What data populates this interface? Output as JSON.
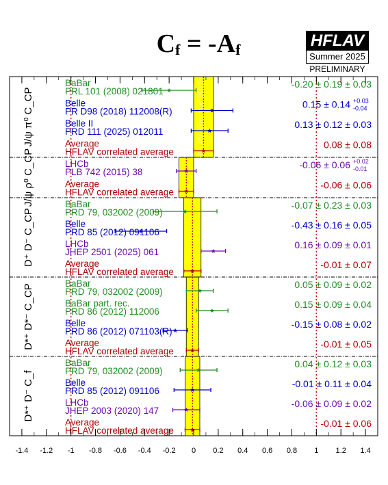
{
  "header": {
    "title_main": "C",
    "title_sub": "f",
    "title_mid": " = -A",
    "title_sub2": "f",
    "logo_name": "HFLAV",
    "logo_season": "Summer 2025",
    "logo_status": "PRELIMINARY"
  },
  "chart_data": {
    "type": "forest",
    "xlim": [
      -1.5,
      1.5
    ],
    "x_ticks": [
      -1.4,
      -1.2,
      -1,
      -0.8,
      -0.6,
      -0.4,
      -0.2,
      0,
      0.2,
      0.4,
      0.6,
      0.8,
      1,
      1.2,
      1.4
    ],
    "x_tick_labels": [
      "-1.4",
      "-1.2",
      "-1",
      "-0.8",
      "-0.6",
      "-0.4",
      "-0.2",
      "0",
      "0.2",
      "0.4",
      "0.6",
      "0.8",
      "1",
      "1.2",
      "1.4"
    ],
    "reference_lines": [
      -1,
      1
    ],
    "watermark": "HFLAV Summer 2025",
    "colors": {
      "babar": "#228b22",
      "belle": "#0000cd",
      "lhcb": "#6a0dad",
      "average": "#b00000",
      "band": "#ffff00"
    },
    "groups": [
      {
        "label": "J/ψ π⁰ C_CP",
        "average": {
          "value": 0.08,
          "error": 0.08
        },
        "entries": [
          {
            "experiment": "BaBar",
            "reference": "PRL 101 (2008) 021801",
            "color_key": "babar",
            "value": -0.2,
            "stat": 0.19,
            "syst": 0.03,
            "value_text": "-0.20 ± 0.19 ± 0.03"
          },
          {
            "experiment": "Belle",
            "reference": "PR D98 (2018) 112008(R)",
            "color_key": "belle",
            "value": 0.15,
            "stat": 0.14,
            "syst_up": 0.03,
            "syst_down": 0.04,
            "value_text": "0.15 ± 0.14",
            "syst_up_text": "+0.03",
            "syst_down_text": "-0.04"
          },
          {
            "experiment": "Belle II",
            "reference": "PRD 111 (2025) 012011",
            "color_key": "belle",
            "value": 0.13,
            "stat": 0.12,
            "syst": 0.03,
            "value_text": "0.13 ± 0.12 ± 0.03"
          },
          {
            "experiment": "Average",
            "reference": "HFLAV correlated average",
            "color_key": "average",
            "value": 0.08,
            "stat": 0.08,
            "value_text": "0.08 ± 0.08"
          }
        ]
      },
      {
        "label": "J/ψ ρ⁰ C_CP",
        "average": {
          "value": -0.06,
          "error": 0.06
        },
        "entries": [
          {
            "experiment": "LHCb",
            "reference": "PLB 742 (2015) 38",
            "color_key": "lhcb",
            "value": -0.06,
            "stat": 0.06,
            "syst_up": 0.02,
            "syst_down": 0.01,
            "value_text": "-0.06 ± 0.06",
            "syst_up_text": "+0.02",
            "syst_down_text": "-0.01"
          },
          {
            "experiment": "Average",
            "reference": "HFLAV correlated average",
            "color_key": "average",
            "value": -0.06,
            "stat": 0.06,
            "value_text": "-0.06 ± 0.06"
          }
        ]
      },
      {
        "label": "D⁺ D⁻ C_CP",
        "average": {
          "value": -0.01,
          "error": 0.07
        },
        "entries": [
          {
            "experiment": "BaBar",
            "reference": "PRD 79, 032002 (2009)",
            "color_key": "babar",
            "value": -0.07,
            "stat": 0.23,
            "syst": 0.03,
            "value_text": "-0.07 ± 0.23 ± 0.03"
          },
          {
            "experiment": "Belle",
            "reference": "PRD 85 (2012) 091106",
            "color_key": "belle",
            "value": -0.43,
            "stat": 0.16,
            "syst": 0.05,
            "value_text": "-0.43 ± 0.16 ± 0.05"
          },
          {
            "experiment": "LHCb",
            "reference": "JHEP 2501 (2025) 061",
            "color_key": "lhcb",
            "value": 0.16,
            "stat": 0.09,
            "syst": 0.01,
            "value_text": "0.16 ± 0.09 ± 0.01"
          },
          {
            "experiment": "Average",
            "reference": "HFLAV correlated average",
            "color_key": "average",
            "value": -0.01,
            "stat": 0.07,
            "value_text": "-0.01 ± 0.07"
          }
        ]
      },
      {
        "label": "D*⁺ D*⁻ C_CP",
        "average": {
          "value": -0.01,
          "error": 0.05
        },
        "entries": [
          {
            "experiment": "BaBar",
            "reference": "PRD 79, 032002 (2009)",
            "color_key": "babar",
            "value": 0.05,
            "stat": 0.09,
            "syst": 0.02,
            "value_text": "0.05 ± 0.09 ± 0.02"
          },
          {
            "experiment": "BaBar part. rec.",
            "reference": "PRD 86 (2012) 112006",
            "color_key": "babar",
            "value": 0.15,
            "stat": 0.09,
            "syst": 0.04,
            "value_text": "0.15 ± 0.09 ± 0.04"
          },
          {
            "experiment": "Belle",
            "reference": "PRD 86 (2012) 071103(R)",
            "color_key": "belle",
            "value": -0.15,
            "stat": 0.08,
            "syst": 0.02,
            "value_text": "-0.15 ± 0.08 ± 0.02"
          },
          {
            "experiment": "Average",
            "reference": "HFLAV correlated average",
            "color_key": "average",
            "value": -0.01,
            "stat": 0.05,
            "value_text": "-0.01 ± 0.05"
          }
        ]
      },
      {
        "label": "D*⁺ D⁻ C_f",
        "average": {
          "value": -0.01,
          "error": 0.06
        },
        "entries": [
          {
            "experiment": "BaBar",
            "reference": "PRD 79, 032002 (2009)",
            "color_key": "babar",
            "value": 0.04,
            "stat": 0.12,
            "syst": 0.03,
            "value_text": "0.04 ± 0.12 ± 0.03"
          },
          {
            "experiment": "Belle",
            "reference": "PRD 85 (2012) 091106",
            "color_key": "belle",
            "value": -0.01,
            "stat": 0.11,
            "syst": 0.04,
            "value_text": "-0.01 ± 0.11 ± 0.04"
          },
          {
            "experiment": "LHCb",
            "reference": "JHEP 2003 (2020) 147",
            "color_key": "lhcb",
            "value": -0.06,
            "stat": 0.09,
            "syst": 0.02,
            "value_text": "-0.06 ± 0.09 ± 0.02"
          },
          {
            "experiment": "Average",
            "reference": "HFLAV correlated average",
            "color_key": "average",
            "value": -0.01,
            "stat": 0.06,
            "value_text": "-0.01 ± 0.06"
          }
        ]
      }
    ]
  }
}
